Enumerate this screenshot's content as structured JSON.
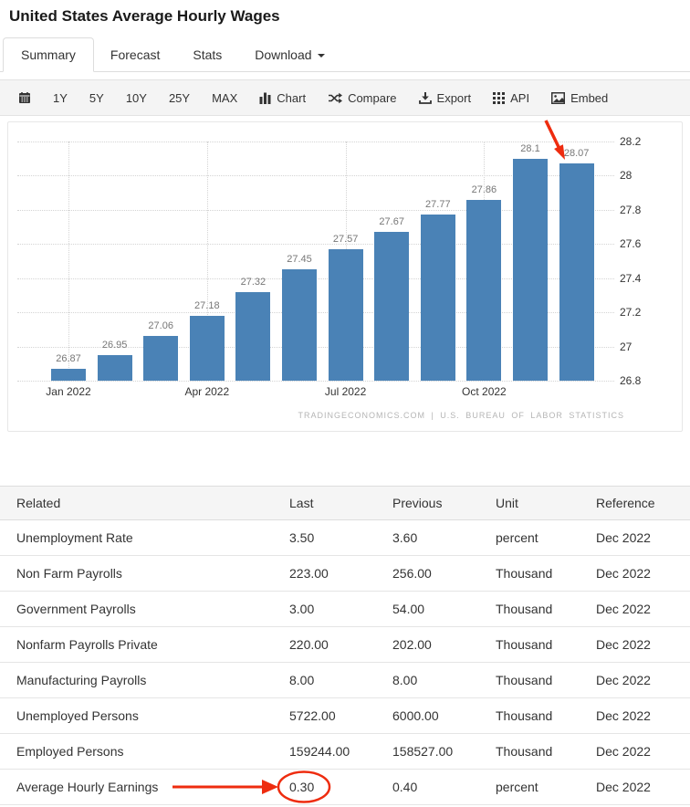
{
  "page_title": "United States Average Hourly Wages",
  "tabs": {
    "items": [
      {
        "label": "Summary",
        "active": true
      },
      {
        "label": "Forecast",
        "active": false
      },
      {
        "label": "Stats",
        "active": false
      },
      {
        "label": "Download",
        "active": false,
        "caret": true
      }
    ]
  },
  "toolbar": {
    "calendar_icon": "calendar-icon",
    "ranges": [
      "1Y",
      "5Y",
      "10Y",
      "25Y",
      "MAX"
    ],
    "actions": [
      {
        "icon": "bar-chart-icon",
        "label": "Chart"
      },
      {
        "icon": "shuffle-icon",
        "label": "Compare"
      },
      {
        "icon": "download-icon",
        "label": "Export"
      },
      {
        "icon": "grid-icon",
        "label": "API"
      },
      {
        "icon": "image-icon",
        "label": "Embed"
      }
    ]
  },
  "colors": {
    "bar": "#4a82b6",
    "annotation": "#ee2c0f",
    "grid": "#d4d4d4"
  },
  "chart_data": {
    "type": "bar",
    "title": "",
    "xlabel": "",
    "ylabel": "",
    "categories": [
      "Jan 2022",
      "Feb 2022",
      "Mar 2022",
      "Apr 2022",
      "May 2022",
      "Jun 2022",
      "Jul 2022",
      "Aug 2022",
      "Sep 2022",
      "Oct 2022",
      "Nov 2022",
      "Dec 2022"
    ],
    "values": [
      26.87,
      26.95,
      27.06,
      27.18,
      27.32,
      27.45,
      27.57,
      27.67,
      27.77,
      27.86,
      28.1,
      28.07
    ],
    "value_labels": [
      "26.87",
      "26.95",
      "27.06",
      "27.18",
      "27.32",
      "27.45",
      "27.57",
      "27.67",
      "27.77",
      "27.86",
      "28.1",
      "28.07"
    ],
    "x_ticks": [
      {
        "index": 0,
        "label": "Jan 2022"
      },
      {
        "index": 3,
        "label": "Apr 2022"
      },
      {
        "index": 6,
        "label": "Jul 2022"
      },
      {
        "index": 9,
        "label": "Oct 2022"
      }
    ],
    "y_ticks": [
      {
        "value": 26.8,
        "label": "26.8"
      },
      {
        "value": 27,
        "label": "27"
      },
      {
        "value": 27.2,
        "label": "27.2"
      },
      {
        "value": 27.4,
        "label": "27.4"
      },
      {
        "value": 27.6,
        "label": "27.6"
      },
      {
        "value": 27.8,
        "label": "27.8"
      },
      {
        "value": 28,
        "label": "28"
      },
      {
        "value": 28.2,
        "label": "28.2"
      }
    ],
    "ylim": [
      26.8,
      28.2
    ],
    "grid": true,
    "legend": false,
    "watermark": "TRADINGECONOMICS.COM | U.S. BUREAU OF LABOR STATISTICS",
    "annotation": {
      "type": "arrow",
      "target": "Dec 2022 bar",
      "value_pointed": "28.07"
    }
  },
  "table": {
    "headers": [
      "Related",
      "Last",
      "Previous",
      "Unit",
      "Reference"
    ],
    "rows": [
      {
        "name": "Unemployment Rate",
        "last": "3.50",
        "previous": "3.60",
        "unit": "percent",
        "reference": "Dec 2022",
        "annotated": false
      },
      {
        "name": "Non Farm Payrolls",
        "last": "223.00",
        "previous": "256.00",
        "unit": "Thousand",
        "reference": "Dec 2022",
        "annotated": false
      },
      {
        "name": "Government Payrolls",
        "last": "3.00",
        "previous": "54.00",
        "unit": "Thousand",
        "reference": "Dec 2022",
        "annotated": false
      },
      {
        "name": "Nonfarm Payrolls Private",
        "last": "220.00",
        "previous": "202.00",
        "unit": "Thousand",
        "reference": "Dec 2022",
        "annotated": false
      },
      {
        "name": "Manufacturing Payrolls",
        "last": "8.00",
        "previous": "8.00",
        "unit": "Thousand",
        "reference": "Dec 2022",
        "annotated": false
      },
      {
        "name": "Unemployed Persons",
        "last": "5722.00",
        "previous": "6000.00",
        "unit": "Thousand",
        "reference": "Dec 2022",
        "annotated": false
      },
      {
        "name": "Employed Persons",
        "last": "159244.00",
        "previous": "158527.00",
        "unit": "Thousand",
        "reference": "Dec 2022",
        "annotated": false
      },
      {
        "name": "Average Hourly Earnings",
        "last": "0.30",
        "previous": "0.40",
        "unit": "percent",
        "reference": "Dec 2022",
        "annotated": true,
        "annotation": {
          "type": "arrow-and-circle",
          "target_column": "Last"
        }
      }
    ]
  }
}
